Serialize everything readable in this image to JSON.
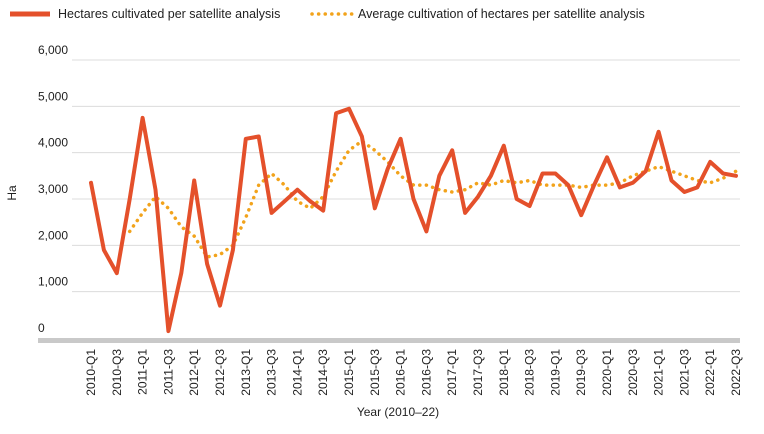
{
  "chart_data": {
    "type": "line",
    "xlabel": "Year (2010–22)",
    "ylabel": "Ha",
    "ylim": [
      0,
      6000
    ],
    "yticks": [
      0,
      1000,
      2000,
      3000,
      4000,
      5000,
      6000
    ],
    "ytick_labels": [
      "0",
      "1,000",
      "2,000",
      "3,000",
      "4,000",
      "5,000",
      "6,000"
    ],
    "grid": true,
    "legend_position": "top",
    "categories": [
      "2010-Q1",
      "2010-Q2",
      "2010-Q3",
      "2010-Q4",
      "2011-Q1",
      "2011-Q2",
      "2011-Q3",
      "2011-Q4",
      "2012-Q1",
      "2012-Q2",
      "2012-Q3",
      "2012-Q4",
      "2013-Q1",
      "2013-Q2",
      "2013-Q3",
      "2013-Q4",
      "2014-Q1",
      "2014-Q2",
      "2014-Q3",
      "2014-Q4",
      "2015-Q1",
      "2015-Q2",
      "2015-Q3",
      "2015-Q4",
      "2016-Q1",
      "2016-Q2",
      "2016-Q3",
      "2016-Q4",
      "2017-Q1",
      "2017-Q2",
      "2017-Q3",
      "2017-Q4",
      "2018-Q1",
      "2018-Q2",
      "2018-Q3",
      "2018-Q4",
      "2019-Q1",
      "2019-Q2",
      "2019-Q3",
      "2019-Q4",
      "2020-Q1",
      "2020-Q2",
      "2020-Q3",
      "2020-Q4",
      "2021-Q1",
      "2021-Q2",
      "2021-Q3",
      "2021-Q4",
      "2022-Q1",
      "2022-Q2",
      "2022-Q3"
    ],
    "tick_labels": [
      "2010-Q1",
      "2010-Q3",
      "2011-Q1",
      "2011-Q3",
      "2012-Q1",
      "2012-Q3",
      "2013-Q1",
      "2013-Q3",
      "2014-Q1",
      "2014-Q3",
      "2015-Q1",
      "2015-Q3",
      "2016-Q1",
      "2016-Q3",
      "2017-Q1",
      "2017-Q3",
      "2018-Q1",
      "2018-Q3",
      "2019-Q1",
      "2019-Q3",
      "2020-Q1",
      "2020-Q3",
      "2021-Q1",
      "2021-Q3",
      "2022-Q1",
      "2022-Q3"
    ],
    "series": [
      {
        "name": "Hectares cultivated per satellite analysis",
        "color": "#e4502b",
        "style": "solid",
        "values": [
          3350,
          1900,
          1400,
          3000,
          4750,
          3200,
          150,
          1400,
          3400,
          1600,
          700,
          1900,
          4300,
          4350,
          2700,
          2950,
          3200,
          2950,
          2750,
          4850,
          4950,
          4350,
          2800,
          3650,
          4300,
          3000,
          2300,
          3500,
          4050,
          2700,
          3050,
          3500,
          4150,
          3000,
          2850,
          3550,
          3550,
          3300,
          2650,
          3300,
          3900,
          3250,
          3350,
          3600,
          4450,
          3400,
          3150,
          3250,
          3800,
          3550,
          3500
        ]
      },
      {
        "name": "Average cultivation of hectares per satellite analysis",
        "color": "#f2a31b",
        "style": "dotted",
        "values": [
          null,
          null,
          null,
          2300,
          2700,
          3050,
          2800,
          2400,
          2200,
          1750,
          1800,
          2000,
          2600,
          3300,
          3550,
          3300,
          2950,
          2800,
          3050,
          3600,
          4050,
          4250,
          4050,
          3800,
          3500,
          3300,
          3300,
          3200,
          3150,
          3200,
          3350,
          3300,
          3400,
          3350,
          3400,
          3300,
          3300,
          3300,
          3250,
          3300,
          3300,
          3350,
          3500,
          3600,
          3700,
          3600,
          3500,
          3400,
          3350,
          3450,
          3600
        ]
      }
    ]
  }
}
